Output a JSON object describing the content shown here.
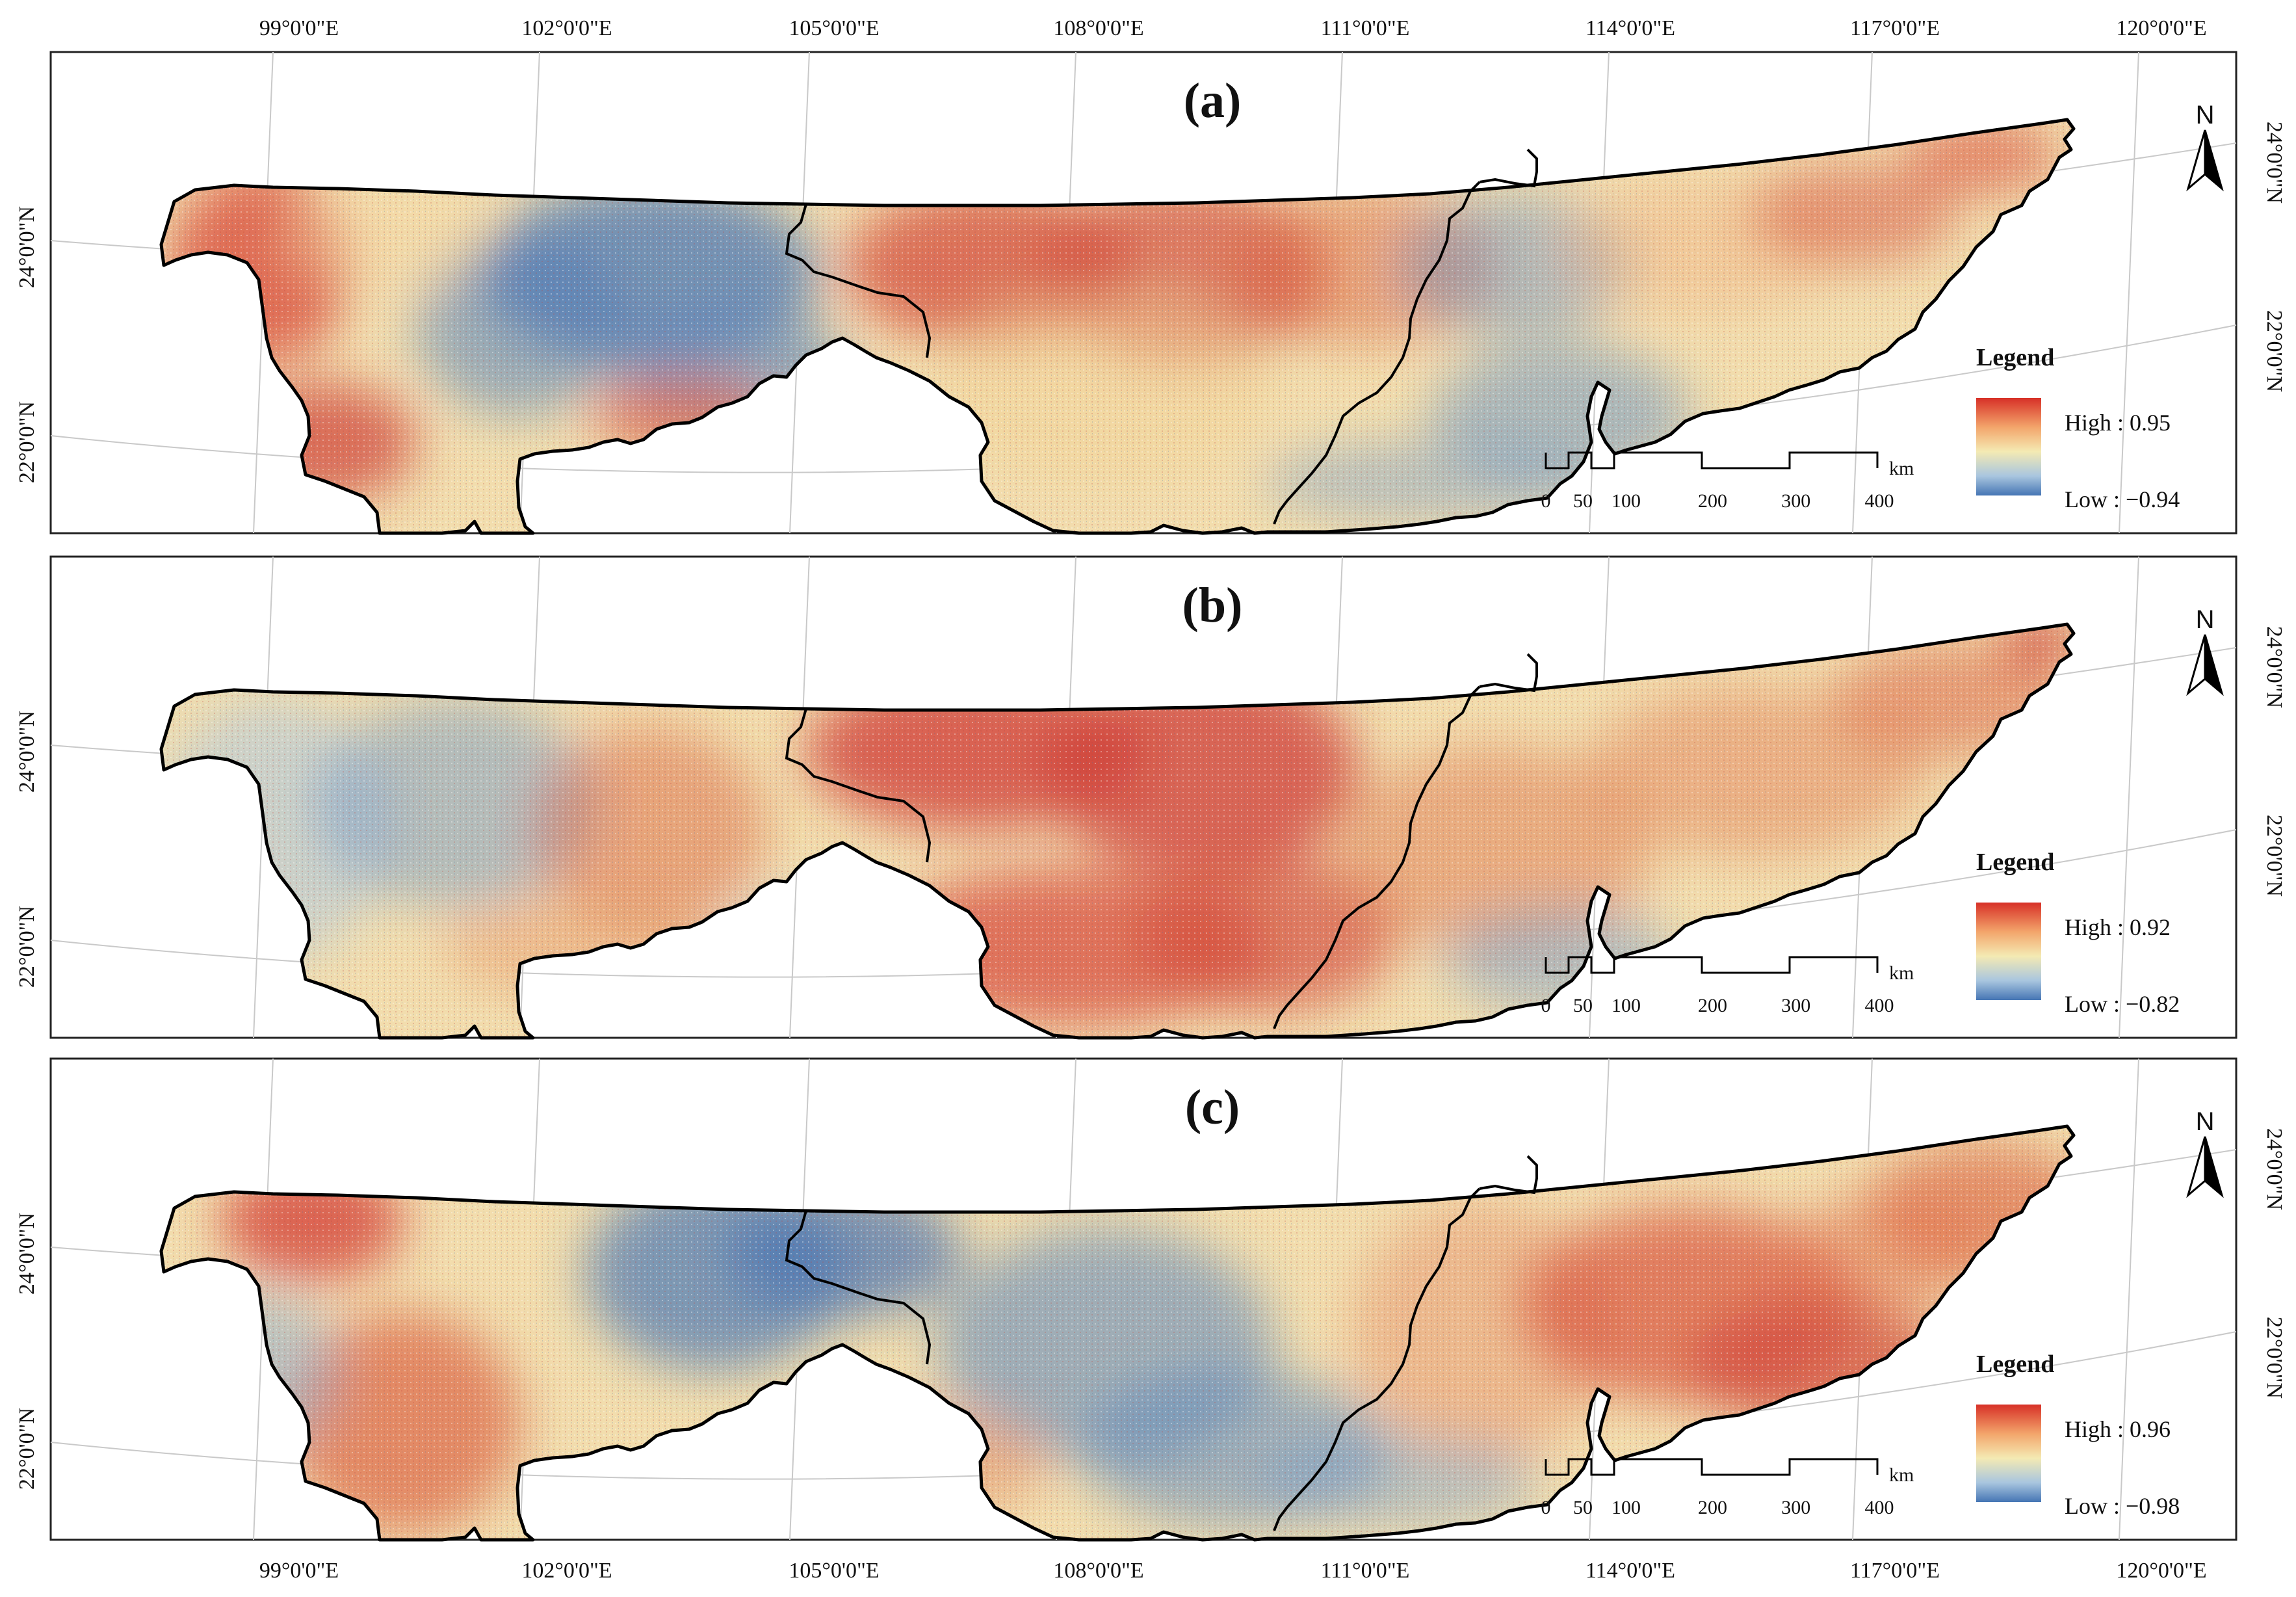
{
  "figure": {
    "lon_labels_top": [
      "99°0'0\"E",
      "102°0'0\"E",
      "105°0'0\"E",
      "108°0'0\"E",
      "111°0'0\"E",
      "114°0'0\"E",
      "117°0'0\"E",
      "120°0'0\"E"
    ],
    "lon_labels_bottom": [
      "99°0'0\"E",
      "102°0'0\"E",
      "105°0'0\"E",
      "108°0'0\"E",
      "111°0'0\"E",
      "114°0'0\"E",
      "117°0'0\"E",
      "120°0'0\"E"
    ],
    "lat_left": [
      "24°0'0\"N",
      "22°0'0\"N"
    ],
    "lat_right": [
      "24°0'0\"N",
      "22°0'0\"N"
    ],
    "north_label": "N",
    "legend_title": "Legend",
    "scale_unit": "km",
    "scale_ticks": [
      "0",
      "50",
      "100",
      "200",
      "300",
      "400"
    ],
    "colors": {
      "high": "#d73027",
      "mid": "#f4eab3",
      "low": "#4575b4",
      "boundary": "#000000"
    }
  },
  "panels": [
    {
      "id": "a",
      "label": "(a)",
      "high": "High : 0.95",
      "low": "Low : −0.94"
    },
    {
      "id": "b",
      "label": "(b)",
      "high": "High : 0.92",
      "low": "Low : −0.82"
    },
    {
      "id": "c",
      "label": "(c)",
      "high": "High : 0.96",
      "low": "Low : −0.98"
    }
  ]
}
